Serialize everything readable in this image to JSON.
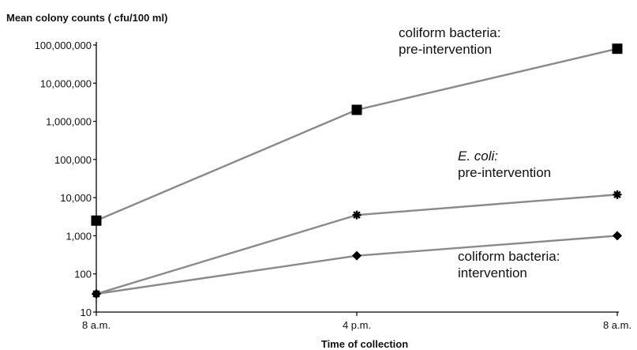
{
  "chart_data": {
    "type": "line",
    "title": "",
    "ylabel": "Mean colony counts ( cfu/100 ml)",
    "xlabel": "Time of collection",
    "categories": [
      "8 a.m.",
      "4 p.m.",
      "8 a.m."
    ],
    "y_scale": "log",
    "ylim": [
      10,
      100000000
    ],
    "y_ticks": [
      "10",
      "100",
      "1,000",
      "10,000",
      "100,000",
      "1,000,000",
      "10,000,000",
      "100,000,000"
    ],
    "grid": false,
    "legend": "none",
    "series": [
      {
        "name": "coliform bacteria: pre-intervention",
        "label_lines": [
          "coliform bacteria:",
          "pre-intervention"
        ],
        "label_italic_first_line": false,
        "marker": "square",
        "values": [
          2500,
          2000000,
          80000000
        ]
      },
      {
        "name": "E. coli: pre-intervention",
        "label_lines": [
          "E. coli:",
          "pre-intervention"
        ],
        "label_italic_first_line": true,
        "marker": "star",
        "values": [
          30,
          3500,
          12000
        ]
      },
      {
        "name": "coliform bacteria: intervention",
        "label_lines": [
          "coliform bacteria:",
          "intervention"
        ],
        "label_italic_first_line": false,
        "marker": "diamond",
        "values": [
          30,
          300,
          1000
        ]
      }
    ],
    "colors": {
      "line": "#8a8a8a",
      "marker": "#000000",
      "axis": "#000000"
    }
  }
}
